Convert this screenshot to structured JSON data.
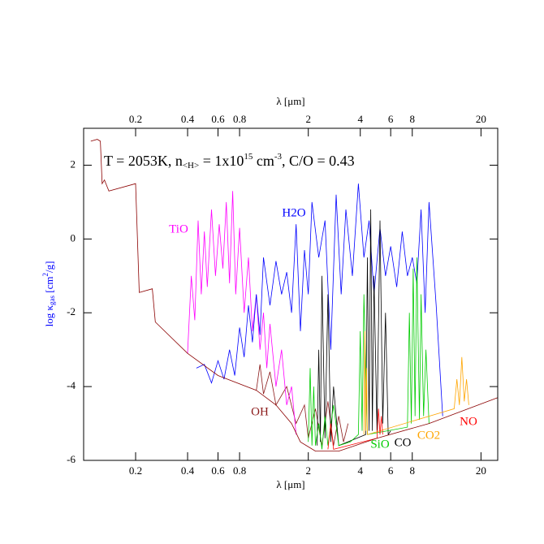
{
  "chart_data": {
    "type": "line",
    "title_parts": [
      "T = 2053K,   n",
      "<H>",
      " = 1x10",
      "15",
      " cm",
      "-3",
      ",   C/O = 0.43"
    ],
    "x_label": "λ  [μm]",
    "y_label_parts": [
      "log κ",
      "gas",
      " [cm",
      "2",
      "/g]"
    ],
    "y_label_color": "#0000ff",
    "log_x": true,
    "xlim": [
      0.1,
      25
    ],
    "xticks": [
      0.2,
      0.4,
      0.6,
      0.8,
      2,
      4,
      6,
      8,
      20
    ],
    "ylim": [
      -6,
      3
    ],
    "yticks": [
      -6,
      -4,
      -2,
      0,
      2
    ],
    "series": [
      {
        "name": "OH",
        "color": "#8b1a1a",
        "x": [
          1.0,
          1.05,
          1.1,
          1.2,
          1.3,
          1.5,
          1.7,
          1.9,
          2.0,
          2.2,
          2.4,
          2.6,
          2.8,
          3.0,
          3.2,
          3.4
        ],
        "values": [
          -4.1,
          -3.4,
          -4.2,
          -3.6,
          -4.5,
          -4.0,
          -5.0,
          -4.5,
          -5.4,
          -4.6,
          -5.6,
          -4.4,
          -5.6,
          -4.8,
          -5.5,
          -5.0
        ]
      },
      {
        "name": "TiO",
        "color": "#ff00ff",
        "x": [
          0.4,
          0.42,
          0.44,
          0.46,
          0.48,
          0.5,
          0.52,
          0.55,
          0.58,
          0.61,
          0.64,
          0.67,
          0.7,
          0.73,
          0.76,
          0.8,
          0.85,
          0.9,
          0.95,
          1.0,
          1.05,
          1.1,
          1.15,
          1.2,
          1.3,
          1.4,
          1.5,
          1.6,
          1.7
        ],
        "values": [
          -3.1,
          -1.0,
          -2.2,
          0.5,
          -1.5,
          0.2,
          -1.3,
          0.8,
          -1.0,
          0.4,
          -0.8,
          1.0,
          -1.2,
          1.3,
          -1.5,
          0.3,
          -2.0,
          -0.5,
          -2.5,
          -1.5,
          -3.0,
          -2.0,
          -3.5,
          -2.3,
          -4.0,
          -3.0,
          -4.5,
          -4.0,
          -5.3
        ]
      },
      {
        "name": "H2O",
        "color": "#0000ff",
        "x": [
          0.45,
          0.5,
          0.55,
          0.6,
          0.65,
          0.7,
          0.75,
          0.8,
          0.85,
          0.9,
          0.95,
          1.0,
          1.05,
          1.1,
          1.2,
          1.3,
          1.4,
          1.5,
          1.6,
          1.7,
          1.8,
          1.9,
          2.0,
          2.1,
          2.3,
          2.5,
          2.7,
          2.9,
          3.1,
          3.3,
          3.6,
          3.9,
          4.2,
          4.5,
          4.8,
          5.2,
          5.6,
          6.0,
          6.5,
          7,
          7.5,
          8,
          8.5,
          9,
          9.5,
          10,
          11,
          12
        ],
        "values": [
          -3.5,
          -3.4,
          -3.9,
          -3.3,
          -3.8,
          -3.0,
          -3.7,
          -2.4,
          -3.2,
          -1.8,
          -2.8,
          -1.5,
          -2.6,
          -0.5,
          -1.8,
          -0.6,
          -1.5,
          -0.9,
          -2.0,
          0.4,
          -2.5,
          -0.3,
          -1.5,
          1.0,
          -0.5,
          0.5,
          -3.0,
          1.2,
          -1.5,
          0.8,
          -1.0,
          1.5,
          -0.5,
          0.5,
          -1.5,
          0.3,
          -1.0,
          -0.2,
          -1.3,
          0.2,
          -1.0,
          -0.5,
          -1.2,
          0.8,
          -2.0,
          1.0,
          -1.8,
          -4.8
        ]
      },
      {
        "name": "CO",
        "color": "#000000",
        "x": [
          2.25,
          2.3,
          2.35,
          2.4,
          2.5,
          2.6,
          2.7,
          2.8,
          3.0,
          4.3,
          4.4,
          4.5,
          4.6,
          4.7,
          4.8,
          5.0,
          5.2,
          5.4,
          5.6,
          5.8,
          6.0
        ],
        "values": [
          -5.6,
          -3.0,
          -5.5,
          -1.0,
          -5.4,
          -1.5,
          -5.5,
          -4.0,
          -5.6,
          -5.3,
          -0.5,
          -5.2,
          0.8,
          -5.2,
          -1.0,
          -5.2,
          0.5,
          -5.0,
          -2.0,
          -5.3,
          -5.2
        ]
      },
      {
        "name": "SiO",
        "color": "#00cc00",
        "x": [
          2.0,
          2.05,
          2.1,
          2.15,
          2.2,
          2.3,
          2.4,
          2.5,
          2.6,
          2.8,
          3.0,
          3.5,
          3.9,
          4.0,
          4.1,
          4.2,
          4.4,
          7.5,
          7.7,
          7.9,
          8.1,
          8.3,
          8.5,
          8.8,
          9.0,
          9.3,
          9.6,
          10.0
        ],
        "values": [
          -5.5,
          -3.5,
          -5.6,
          -4.0,
          -5.6,
          -5.0,
          -5.7,
          -4.8,
          -5.6,
          -4.5,
          -5.6,
          -5.5,
          -5.3,
          -2.5,
          -5.2,
          -1.5,
          -5.3,
          -5.1,
          -2.0,
          -5.0,
          -0.8,
          -4.8,
          -0.5,
          -4.9,
          -1.5,
          -4.8,
          -3.0,
          -5.0
        ]
      },
      {
        "name": "CO2",
        "color": "#ffa500",
        "x": [
          4.2,
          4.25,
          4.3,
          4.35,
          4.4,
          14,
          14.5,
          15,
          15.5,
          16,
          16.5,
          17
        ],
        "values": [
          -5.3,
          -2.5,
          -5.2,
          -3.5,
          -5.3,
          -4.6,
          -3.8,
          -4.5,
          -3.2,
          -4.4,
          -3.8,
          -4.5
        ]
      },
      {
        "name": "NO",
        "color": "#ff0000",
        "x": [
          2.6,
          2.7,
          2.8,
          5.0,
          5.1,
          5.2,
          5.3,
          5.4
        ],
        "values": [
          -5.7,
          -5.0,
          -5.7,
          -5.4,
          -4.6,
          -5.3,
          -4.8,
          -5.3
        ]
      },
      {
        "color": "#8b0000",
        "x": [
          0.11,
          0.12,
          0.125,
          0.128,
          0.132,
          0.14,
          0.2,
          0.21,
          0.25,
          0.26,
          0.4,
          0.6,
          1.0,
          1.3,
          1.6,
          1.8,
          2.2,
          3,
          5,
          10,
          25
        ],
        "values": [
          2.65,
          2.7,
          2.65,
          1.5,
          1.6,
          1.3,
          1.5,
          -1.45,
          -1.35,
          -2.25,
          -3.1,
          -3.7,
          -4.1,
          -4.5,
          -5.0,
          -5.5,
          -5.75,
          -5.75,
          -5.4,
          -5.0,
          -4.3
        ]
      }
    ]
  }
}
